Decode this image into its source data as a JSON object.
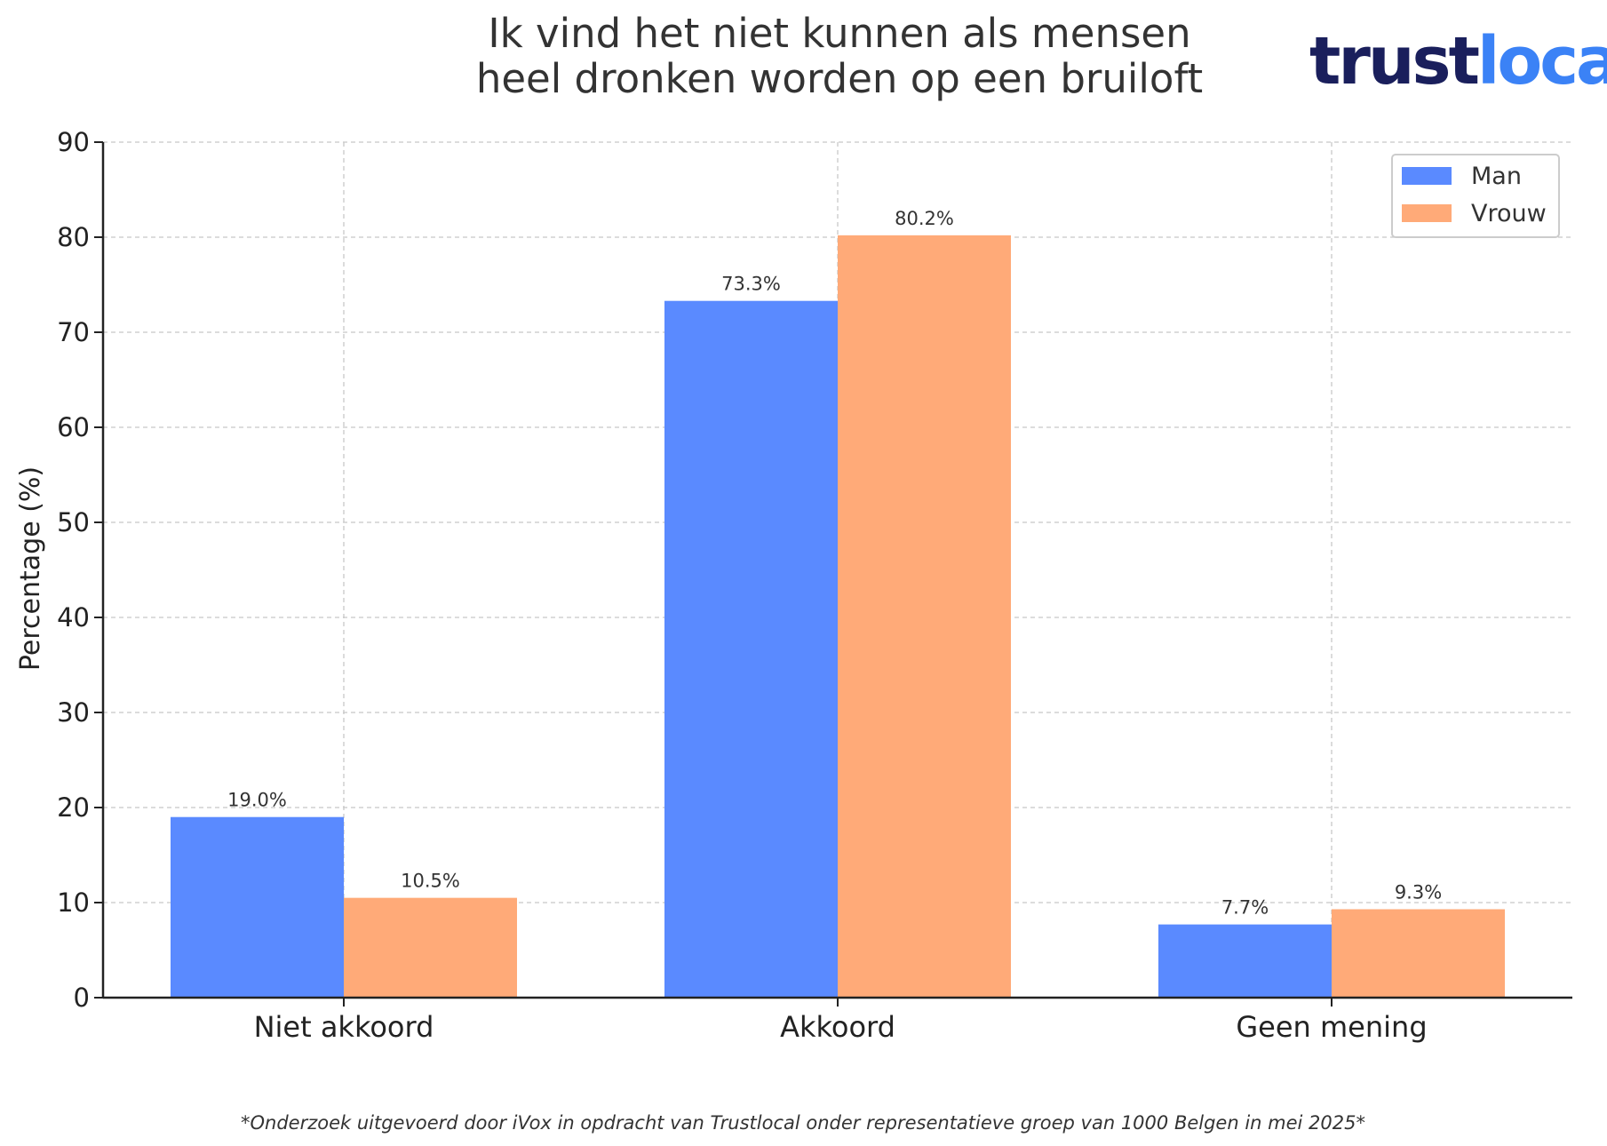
{
  "title_lines": [
    "Ik vind het niet kunnen als mensen",
    "heel dronken worden op een bruiloft"
  ],
  "logo": {
    "text_dark": "trust",
    "text_light": "local",
    "color_dark": "#1a1f5c",
    "color_light": "#3b82f6"
  },
  "footnote": "*Onderzoek uitgevoerd door iVox in opdracht van Trustlocal onder representatieve groep van 1000 Belgen in mei 2025*",
  "chart_data": {
    "type": "bar",
    "title": "Ik vind het niet kunnen als mensen heel dronken worden op een bruiloft",
    "xlabel": "",
    "ylabel": "Percentage (%)",
    "categories": [
      "Niet akkoord",
      "Akkoord",
      "Geen mening"
    ],
    "series": [
      {
        "name": "Man",
        "color": "#5a8aff",
        "values": [
          19.0,
          73.3,
          7.7
        ],
        "labels": [
          "19.0%",
          "73.3%",
          "7.7%"
        ]
      },
      {
        "name": "Vrouw",
        "color": "#ffaa78",
        "values": [
          10.5,
          80.2,
          9.3
        ],
        "labels": [
          "10.5%",
          "80.2%",
          "9.3%"
        ]
      }
    ],
    "ylim": [
      0,
      90
    ],
    "yticks": [
      0,
      10,
      20,
      30,
      40,
      50,
      60,
      70,
      80,
      90
    ],
    "grid": true,
    "legend_position": "top-right"
  }
}
